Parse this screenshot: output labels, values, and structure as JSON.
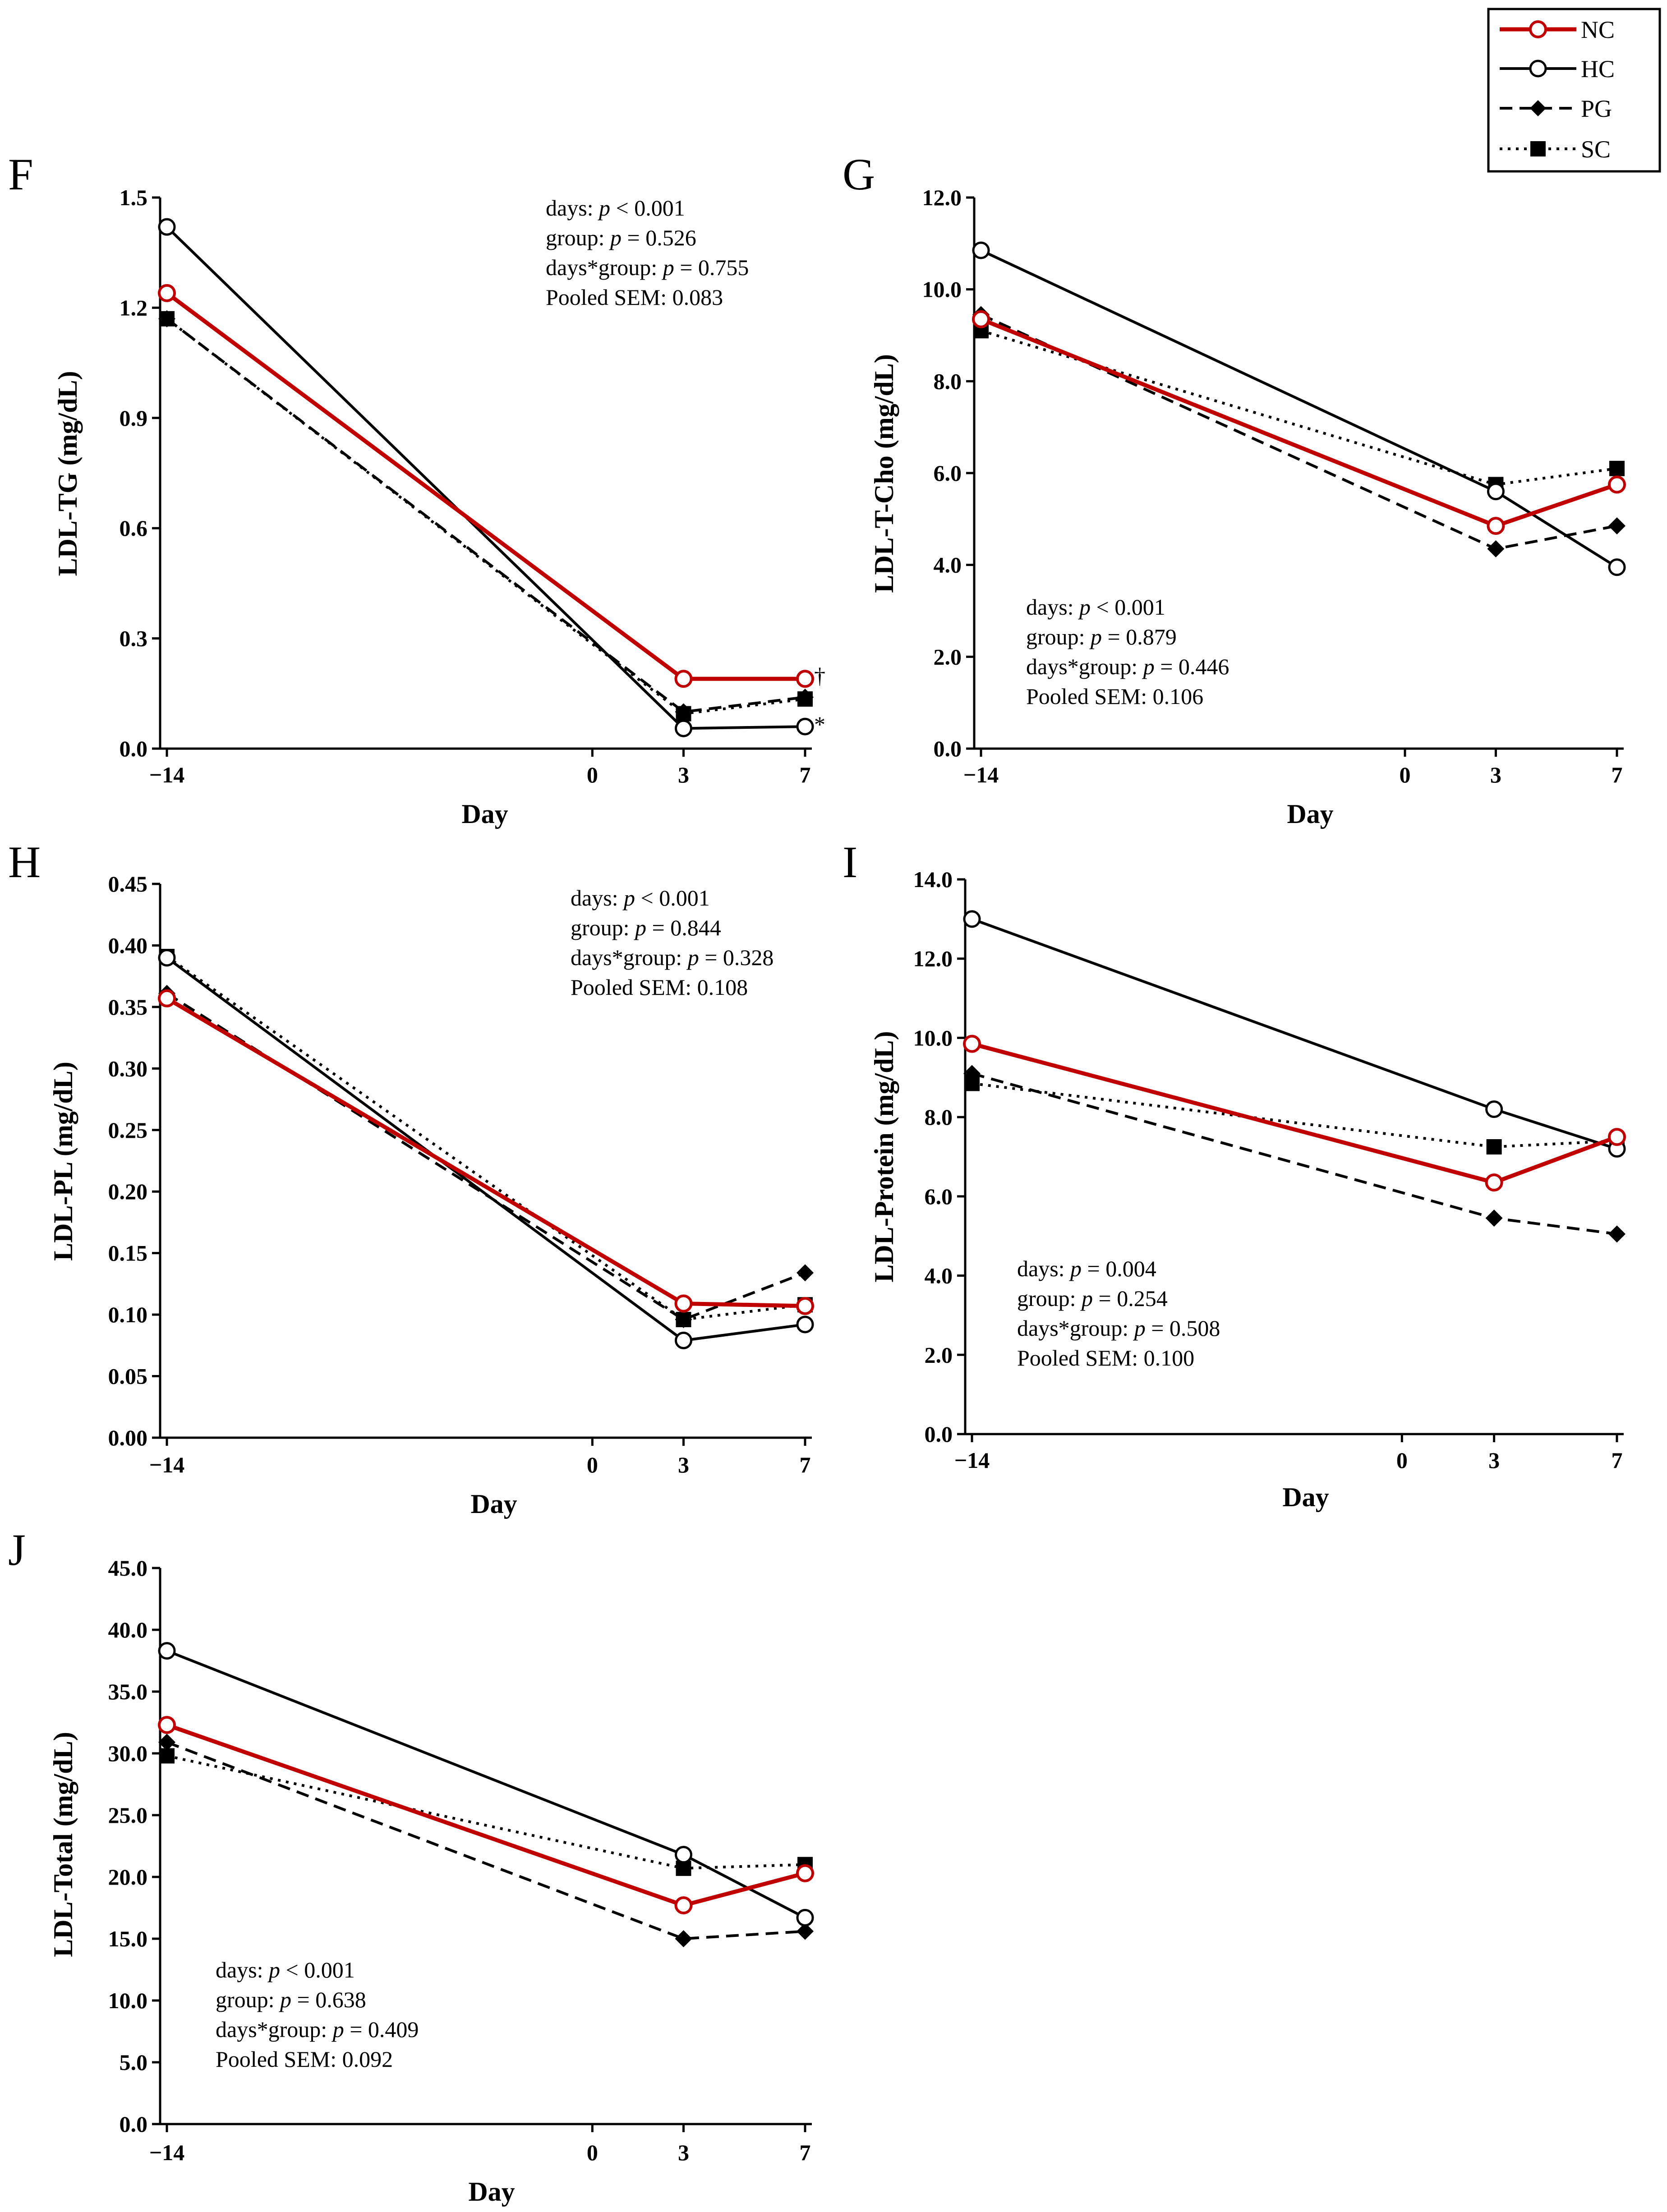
{
  "legend": {
    "entries": [
      {
        "key": "NC",
        "label": "NC"
      },
      {
        "key": "HC",
        "label": "HC"
      },
      {
        "key": "PG",
        "label": "PG"
      },
      {
        "key": "SC",
        "label": "SC"
      }
    ]
  },
  "series_styles": {
    "NC": {
      "color": "#c00000",
      "dash": "solid",
      "marker": "open-circle"
    },
    "HC": {
      "color": "#000000",
      "dash": "solid",
      "marker": "open-circle"
    },
    "PG": {
      "color": "#000000",
      "dash": "dashed",
      "marker": "diamond"
    },
    "SC": {
      "color": "#000000",
      "dash": "dotted",
      "marker": "square"
    }
  },
  "chart_data": [
    {
      "type": "line",
      "panel": "F",
      "ylabel": "LDL-TG (mg/dL)",
      "xlabel": "Day",
      "x": [
        -14,
        3,
        7
      ],
      "x_ticks": [
        "−14",
        "0",
        "3",
        "7"
      ],
      "xlim": [
        -14,
        7
      ],
      "ylim": [
        0,
        1.5
      ],
      "y_ticks": [
        "0.0",
        "0.3",
        "0.6",
        "0.9",
        "1.2",
        "1.5"
      ],
      "series": [
        {
          "name": "NC",
          "values": [
            1.24,
            0.19,
            0.19
          ]
        },
        {
          "name": "HC",
          "values": [
            1.42,
            0.055,
            0.06
          ]
        },
        {
          "name": "PG",
          "values": [
            1.17,
            0.1,
            0.14
          ]
        },
        {
          "name": "SC",
          "values": [
            1.17,
            0.095,
            0.135
          ]
        }
      ],
      "stats": [
        "days: ",
        "p",
        " < 0.001",
        "group: ",
        "p",
        " = 0.526",
        "days*group: ",
        "p",
        " = 0.755",
        "Pooled SEM: 0.083"
      ],
      "stat_lines": [
        {
          "label": "days: ",
          "p": "p",
          "value": " < 0.001"
        },
        {
          "label": "group: ",
          "p": "p",
          "value": " = 0.526"
        },
        {
          "label": "days*group: ",
          "p": "p",
          "value": " = 0.755"
        },
        {
          "label": "Pooled SEM: 0.083",
          "p": "",
          "value": ""
        }
      ],
      "annotations": [
        "†",
        "*"
      ]
    },
    {
      "type": "line",
      "panel": "G",
      "ylabel": "LDL-T-Cho (mg/dL)",
      "xlabel": "Day",
      "x": [
        -14,
        3,
        7
      ],
      "x_ticks": [
        "−14",
        "0",
        "3",
        "7"
      ],
      "xlim": [
        -14,
        7
      ],
      "ylim": [
        0,
        12
      ],
      "y_ticks": [
        "0.0",
        "2.0",
        "4.0",
        "6.0",
        "8.0",
        "10.0",
        "12.0"
      ],
      "series": [
        {
          "name": "NC",
          "values": [
            9.35,
            4.85,
            5.75
          ]
        },
        {
          "name": "HC",
          "values": [
            10.85,
            5.6,
            3.95
          ]
        },
        {
          "name": "PG",
          "values": [
            9.45,
            4.35,
            4.85
          ]
        },
        {
          "name": "SC",
          "values": [
            9.1,
            5.75,
            6.1
          ]
        }
      ],
      "stat_lines": [
        {
          "label": "days: ",
          "p": "p",
          "value": " < 0.001"
        },
        {
          "label": "group: ",
          "p": "p",
          "value": " = 0.879"
        },
        {
          "label": "days*group: ",
          "p": "p",
          "value": " = 0.446"
        },
        {
          "label": "Pooled SEM: 0.106",
          "p": "",
          "value": ""
        }
      ]
    },
    {
      "type": "line",
      "panel": "H",
      "ylabel": "LDL-PL (mg/dL)",
      "xlabel": "Day",
      "x": [
        -14,
        3,
        7
      ],
      "x_ticks": [
        "−14",
        "0",
        "3",
        "7"
      ],
      "xlim": [
        -14,
        7
      ],
      "ylim": [
        0,
        0.45
      ],
      "y_ticks": [
        "0.00",
        "0.05",
        "0.10",
        "0.15",
        "0.20",
        "0.25",
        "0.30",
        "0.35",
        "0.40",
        "0.45"
      ],
      "series": [
        {
          "name": "NC",
          "values": [
            0.357,
            0.109,
            0.107
          ]
        },
        {
          "name": "HC",
          "values": [
            0.39,
            0.079,
            0.092
          ]
        },
        {
          "name": "PG",
          "values": [
            0.361,
            0.096,
            0.134
          ]
        },
        {
          "name": "SC",
          "values": [
            0.391,
            0.096,
            0.108
          ]
        }
      ],
      "stat_lines": [
        {
          "label": "days: ",
          "p": "p",
          "value": " < 0.001"
        },
        {
          "label": "group: ",
          "p": "p",
          "value": " = 0.844"
        },
        {
          "label": "days*group: ",
          "p": "p",
          "value": " = 0.328"
        },
        {
          "label": "Pooled SEM: 0.108",
          "p": "",
          "value": ""
        }
      ]
    },
    {
      "type": "line",
      "panel": "I",
      "ylabel": "LDL-Protein  (mg/dL)",
      "xlabel": "Day",
      "x": [
        -14,
        3,
        7
      ],
      "x_ticks": [
        "−14",
        "0",
        "3",
        "7"
      ],
      "xlim": [
        -14,
        7
      ],
      "ylim": [
        0,
        14
      ],
      "y_ticks": [
        "0.0",
        "2.0",
        "4.0",
        "6.0",
        "8.0",
        "10.0",
        "12.0",
        "14.0"
      ],
      "series": [
        {
          "name": "NC",
          "values": [
            9.85,
            6.35,
            7.5
          ]
        },
        {
          "name": "HC",
          "values": [
            13.0,
            8.2,
            7.2
          ]
        },
        {
          "name": "PG",
          "values": [
            9.1,
            5.45,
            5.05
          ]
        },
        {
          "name": "SC",
          "values": [
            8.85,
            7.25,
            7.4
          ]
        }
      ],
      "stat_lines": [
        {
          "label": "days: ",
          "p": "p",
          "value": " = 0.004"
        },
        {
          "label": "group: ",
          "p": "p",
          "value": " = 0.254"
        },
        {
          "label": "days*group: ",
          "p": "p",
          "value": " = 0.508"
        },
        {
          "label": "Pooled SEM: 0.100",
          "p": "",
          "value": ""
        }
      ]
    },
    {
      "type": "line",
      "panel": "J",
      "ylabel": "LDL-Total (mg/dL)",
      "xlabel": "Day",
      "x": [
        -14,
        3,
        7
      ],
      "x_ticks": [
        "−14",
        "0",
        "3",
        "7"
      ],
      "xlim": [
        -14,
        7
      ],
      "ylim": [
        0,
        45
      ],
      "y_ticks": [
        "0.0",
        "5.0",
        "10.0",
        "15.0",
        "20.0",
        "25.0",
        "30.0",
        "35.0",
        "40.0",
        "45.0"
      ],
      "series": [
        {
          "name": "NC",
          "values": [
            32.3,
            17.7,
            20.3
          ]
        },
        {
          "name": "HC",
          "values": [
            38.3,
            21.8,
            16.7
          ]
        },
        {
          "name": "PG",
          "values": [
            30.9,
            15.0,
            15.6
          ]
        },
        {
          "name": "SC",
          "values": [
            29.8,
            20.7,
            21.0
          ]
        }
      ],
      "stat_lines": [
        {
          "label": "days: ",
          "p": "p",
          "value": " < 0.001"
        },
        {
          "label": "group: ",
          "p": "p",
          "value": " = 0.638"
        },
        {
          "label": "days*group: ",
          "p": "p",
          "value": " = 0.409"
        },
        {
          "label": "Pooled SEM: 0.092",
          "p": "",
          "value": ""
        }
      ]
    }
  ]
}
